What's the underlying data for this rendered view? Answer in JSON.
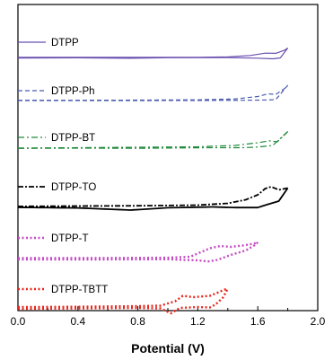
{
  "chart_data": {
    "type": "line",
    "xlabel": "Potential (V)",
    "ylabel": "",
    "xlim": [
      0.0,
      2.0
    ],
    "xticks": [
      "0.0",
      "0.4",
      "0.8",
      "1.2",
      "1.6",
      "2.0"
    ],
    "y_ticks_shown": false,
    "grid": false,
    "legend": "inline, left of each curve",
    "series": [
      {
        "name": "DTPP",
        "color": "#6a4fb0",
        "dash": "solid",
        "offset": 0,
        "upper": [
          [
            0.0,
            0.1
          ],
          [
            0.4,
            0.1
          ],
          [
            0.8,
            0.1
          ],
          [
            1.2,
            0.2
          ],
          [
            1.4,
            0.6
          ],
          [
            1.55,
            2.2
          ],
          [
            1.65,
            4.8
          ],
          [
            1.72,
            4.6
          ],
          [
            1.78,
            8.2
          ],
          [
            1.8,
            10.5
          ]
        ],
        "lower": [
          [
            0.0,
            -0.6
          ],
          [
            0.4,
            -0.4
          ],
          [
            0.75,
            -0.9
          ],
          [
            1.0,
            -0.3
          ],
          [
            1.4,
            -0.2
          ],
          [
            1.6,
            -0.8
          ],
          [
            1.7,
            -1.5
          ],
          [
            1.75,
            -0.5
          ],
          [
            1.8,
            10.5
          ]
        ]
      },
      {
        "name": "DTPP-Ph",
        "color": "#4a5ab0",
        "dash": "dashed",
        "offset": -48,
        "upper": [
          [
            0.0,
            0.3
          ],
          [
            0.4,
            0.3
          ],
          [
            0.8,
            0.5
          ],
          [
            1.2,
            0.8
          ],
          [
            1.45,
            1.8
          ],
          [
            1.6,
            4.5
          ],
          [
            1.67,
            7.5
          ],
          [
            1.72,
            6.8
          ],
          [
            1.78,
            13.5
          ],
          [
            1.8,
            17
          ]
        ],
        "lower": [
          [
            0.0,
            0.0
          ],
          [
            0.4,
            0.0
          ],
          [
            0.8,
            0.0
          ],
          [
            1.2,
            0.1
          ],
          [
            1.5,
            0.3
          ],
          [
            1.65,
            0.6
          ],
          [
            1.72,
            1.0
          ],
          [
            1.8,
            17
          ]
        ]
      },
      {
        "name": "DTPP-BT",
        "color": "#1f8a3a",
        "dash": "dashdot",
        "offset": -101,
        "upper": [
          [
            0.0,
            0.1
          ],
          [
            0.4,
            0.5
          ],
          [
            0.8,
            1.0
          ],
          [
            1.2,
            1.5
          ],
          [
            1.45,
            3.0
          ],
          [
            1.6,
            6.0
          ],
          [
            1.68,
            8.2
          ],
          [
            1.73,
            7.0
          ],
          [
            1.78,
            15
          ],
          [
            1.8,
            18.5
          ]
        ],
        "lower": [
          [
            0.0,
            -0.3
          ],
          [
            0.4,
            0.0
          ],
          [
            0.8,
            -0.2
          ],
          [
            1.2,
            0.4
          ],
          [
            1.5,
            0.5
          ],
          [
            1.6,
            1.2
          ],
          [
            1.7,
            3.0
          ],
          [
            1.8,
            18.5
          ]
        ]
      },
      {
        "name": "DTPP-TO",
        "color": "#000000",
        "dash": "mixed",
        "offset": -166,
        "upper": [
          [
            0.0,
            0.1
          ],
          [
            0.4,
            0.5
          ],
          [
            0.8,
            0.8
          ],
          [
            1.2,
            1.5
          ],
          [
            1.4,
            3.5
          ],
          [
            1.52,
            7.5
          ],
          [
            1.6,
            13
          ],
          [
            1.65,
            20
          ],
          [
            1.69,
            22
          ],
          [
            1.74,
            18.5
          ],
          [
            1.8,
            20.5
          ]
        ],
        "lower": [
          [
            0.0,
            -1.0
          ],
          [
            0.4,
            -1.6
          ],
          [
            0.75,
            -4.0
          ],
          [
            1.0,
            -1.4
          ],
          [
            1.3,
            -0.5
          ],
          [
            1.45,
            -1.2
          ],
          [
            1.6,
            -1.2
          ],
          [
            1.66,
            2.0
          ],
          [
            1.74,
            6.0
          ],
          [
            1.8,
            20.5
          ]
        ]
      },
      {
        "name": "DTPP-T",
        "color": "#c44bc4",
        "dash": "dotted",
        "offset": -225,
        "upper": [
          [
            0.0,
            1.5
          ],
          [
            0.6,
            1.6
          ],
          [
            1.0,
            2.0
          ],
          [
            1.15,
            3.0
          ],
          [
            1.28,
            12.5
          ],
          [
            1.35,
            15.0
          ],
          [
            1.42,
            14.0
          ],
          [
            1.5,
            15.5
          ],
          [
            1.57,
            17.5
          ],
          [
            1.6,
            19.0
          ]
        ],
        "lower": [
          [
            0.0,
            0.0
          ],
          [
            0.6,
            0.0
          ],
          [
            1.0,
            0.2
          ],
          [
            1.1,
            -0.5
          ],
          [
            1.2,
            -1.0
          ],
          [
            1.27,
            -2.2
          ],
          [
            1.33,
            -0.5
          ],
          [
            1.42,
            5.0
          ],
          [
            1.52,
            10.0
          ],
          [
            1.58,
            16.0
          ],
          [
            1.6,
            19.0
          ]
        ]
      },
      {
        "name": "DTPP-TBTT",
        "color": "#e8261c",
        "dash": "dotted",
        "offset": -277,
        "upper": [
          [
            0.0,
            -1.0
          ],
          [
            0.4,
            -0.7
          ],
          [
            0.8,
            0.0
          ],
          [
            0.95,
            0.5
          ],
          [
            1.05,
            5.5
          ],
          [
            1.1,
            11.5
          ],
          [
            1.17,
            10.0
          ],
          [
            1.28,
            11.5
          ],
          [
            1.34,
            15.5
          ],
          [
            1.37,
            18.0
          ],
          [
            1.4,
            19.5
          ]
        ],
        "lower": [
          [
            0.0,
            -3.0
          ],
          [
            0.4,
            -2.5
          ],
          [
            0.8,
            -2.0
          ],
          [
            0.95,
            -2.5
          ],
          [
            1.02,
            -8.0
          ],
          [
            1.08,
            -2.0
          ],
          [
            1.2,
            -1.0
          ],
          [
            1.28,
            -1.5
          ],
          [
            1.32,
            2.0
          ],
          [
            1.37,
            10.0
          ],
          [
            1.4,
            19.5
          ]
        ]
      }
    ]
  }
}
